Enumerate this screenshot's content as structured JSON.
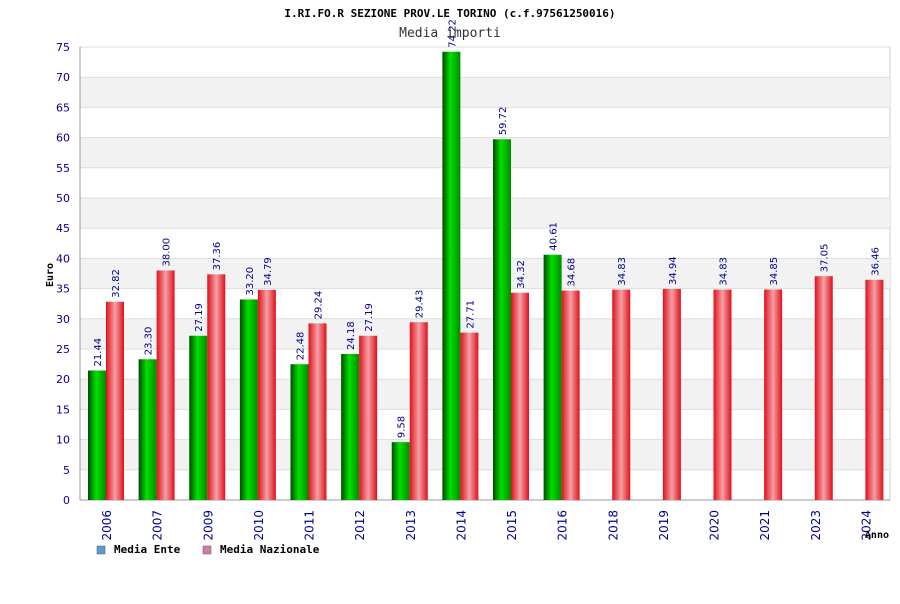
{
  "chart_data": {
    "type": "bar",
    "title": "I.RI.FO.R SEZIONE PROV.LE TORINO (c.f.97561250016)",
    "subtitle": "Media importi",
    "xlabel": "Anno",
    "ylabel": "Euro",
    "ylim": [
      0,
      75
    ],
    "ytick_step": 5,
    "grid": true,
    "legend_position": "bottom-left",
    "categories": [
      "2006",
      "2007",
      "2009",
      "2010",
      "2011",
      "2012",
      "2013",
      "2014",
      "2015",
      "2016",
      "2018",
      "2019",
      "2020",
      "2021",
      "2023",
      "2024"
    ],
    "series": [
      {
        "name": "Media Ente",
        "color": "#00b400",
        "legend_color": "#5b9bd5",
        "values": [
          21.44,
          23.3,
          27.19,
          33.2,
          22.48,
          24.18,
          9.58,
          74.22,
          59.72,
          40.61,
          null,
          null,
          null,
          null,
          null,
          null
        ],
        "labels": [
          "21.44",
          "23.30",
          "27.19",
          "33.20",
          "22.48",
          "24.18",
          "9.58",
          "74.22",
          "59.72",
          "40.61",
          null,
          null,
          null,
          null,
          null,
          null
        ]
      },
      {
        "name": "Media Nazionale",
        "color": "#e8202a",
        "legend_color": "#d57aa8",
        "values": [
          32.82,
          38.0,
          37.36,
          34.79,
          29.24,
          27.19,
          29.43,
          27.71,
          34.32,
          34.68,
          34.83,
          34.94,
          34.83,
          34.85,
          37.05,
          36.46
        ],
        "labels": [
          "32.82",
          "38.00",
          "37.36",
          "34.79",
          "29.24",
          "27.19",
          "29.43",
          "27.71",
          "34.32",
          "34.68",
          "34.83",
          "34.94",
          "34.83",
          "34.85",
          "37.05",
          "36.46"
        ]
      }
    ]
  }
}
